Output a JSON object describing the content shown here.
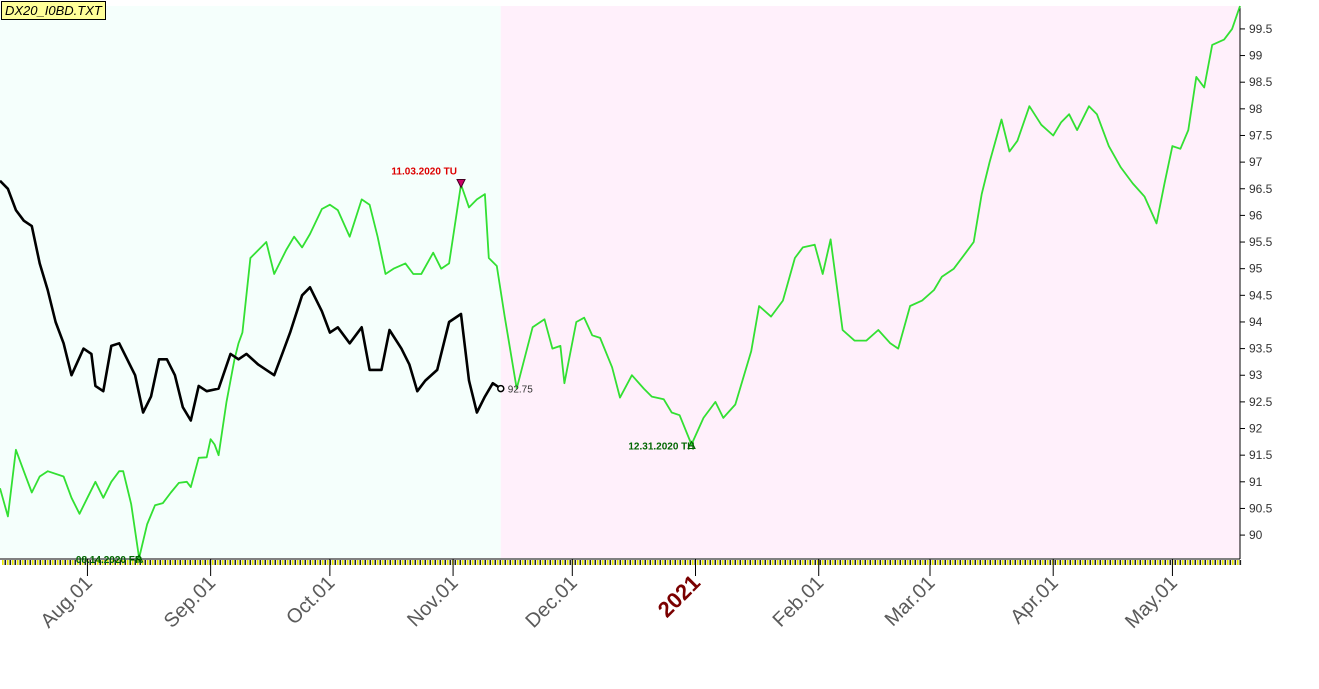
{
  "title": "DX20_I0BD.TXT",
  "colors": {
    "region_past": "#f5fffc",
    "region_future": "#fff0fb",
    "forecast_line": "#33e033",
    "price_line": "#000000",
    "annotation_red": "#dd0000",
    "annotation_green": "#006600",
    "year_label": "#7a0000"
  },
  "chart_data": {
    "type": "line",
    "x_range": [
      "2020-07-10",
      "2021-05-18"
    ],
    "y_range": [
      89.57,
      99.93
    ],
    "y_ticks": [
      "90",
      "90.5",
      "91",
      "91.5",
      "92",
      "92.5",
      "93",
      "93.5",
      "94",
      "94.5",
      "95",
      "95.5",
      "96",
      "96.5",
      "97",
      "97.5",
      "98",
      "98.5",
      "99",
      "99.5"
    ],
    "x_tick_labels": [
      {
        "label": "Aug.01",
        "date": "2020-08-01"
      },
      {
        "label": "Sep.01",
        "date": "2020-09-01"
      },
      {
        "label": "Oct.01",
        "date": "2020-10-01"
      },
      {
        "label": "Nov.01",
        "date": "2020-11-01"
      },
      {
        "label": "Dec.01",
        "date": "2020-12-01"
      },
      {
        "label": "2021",
        "date": "2021-01-01",
        "year": true
      },
      {
        "label": "Feb.01",
        "date": "2021-02-01"
      },
      {
        "label": "Mar.01",
        "date": "2021-03-01"
      },
      {
        "label": "Apr.01",
        "date": "2021-04-01"
      },
      {
        "label": "May.01",
        "date": "2021-05-01"
      }
    ],
    "region_split_date": "2020-11-13",
    "series": [
      {
        "kind": "forecast",
        "points": [
          [
            "2020-07-10",
            90.88
          ],
          [
            "2020-07-12",
            90.35
          ],
          [
            "2020-07-14",
            91.6
          ],
          [
            "2020-07-16",
            91.2
          ],
          [
            "2020-07-18",
            90.8
          ],
          [
            "2020-07-20",
            91.1
          ],
          [
            "2020-07-22",
            91.2
          ],
          [
            "2020-07-26",
            91.1
          ],
          [
            "2020-07-28",
            90.7
          ],
          [
            "2020-07-30",
            90.4
          ],
          [
            "2020-08-01",
            90.7
          ],
          [
            "2020-08-03",
            91
          ],
          [
            "2020-08-05",
            90.7
          ],
          [
            "2020-08-07",
            91
          ],
          [
            "2020-08-09",
            91.2
          ],
          [
            "2020-08-10",
            91.2
          ],
          [
            "2020-08-12",
            90.58
          ],
          [
            "2020-08-14",
            89.57
          ],
          [
            "2020-08-16",
            90.2
          ],
          [
            "2020-08-18",
            90.56
          ],
          [
            "2020-08-20",
            90.6
          ],
          [
            "2020-08-22",
            90.8
          ],
          [
            "2020-08-24",
            90.98
          ],
          [
            "2020-08-26",
            91
          ],
          [
            "2020-08-27",
            90.9
          ],
          [
            "2020-08-29",
            91.45
          ],
          [
            "2020-08-31",
            91.46
          ],
          [
            "2020-09-01",
            91.8
          ],
          [
            "2020-09-02",
            91.7
          ],
          [
            "2020-09-03",
            91.5
          ],
          [
            "2020-09-05",
            92.5
          ],
          [
            "2020-09-07",
            93.3
          ],
          [
            "2020-09-08",
            93.6
          ],
          [
            "2020-09-09",
            93.8
          ],
          [
            "2020-09-11",
            95.2
          ],
          [
            "2020-09-15",
            95.5
          ],
          [
            "2020-09-17",
            94.9
          ],
          [
            "2020-09-20",
            95.35
          ],
          [
            "2020-09-22",
            95.6
          ],
          [
            "2020-09-24",
            95.4
          ],
          [
            "2020-09-26",
            95.65
          ],
          [
            "2020-09-29",
            96.12
          ],
          [
            "2020-10-01",
            96.2
          ],
          [
            "2020-10-03",
            96.1
          ],
          [
            "2020-10-06",
            95.6
          ],
          [
            "2020-10-09",
            96.3
          ],
          [
            "2020-10-11",
            96.2
          ],
          [
            "2020-10-13",
            95.6
          ],
          [
            "2020-10-15",
            94.9
          ],
          [
            "2020-10-17",
            95
          ],
          [
            "2020-10-20",
            95.1
          ],
          [
            "2020-10-22",
            94.9
          ],
          [
            "2020-10-24",
            94.9
          ],
          [
            "2020-10-27",
            95.3
          ],
          [
            "2020-10-29",
            95
          ],
          [
            "2020-10-31",
            95.1
          ],
          [
            "2020-11-03",
            96.58
          ],
          [
            "2020-11-05",
            96.15
          ],
          [
            "2020-11-07",
            96.3
          ],
          [
            "2020-11-09",
            96.4
          ],
          [
            "2020-11-10",
            95.2
          ],
          [
            "2020-11-12",
            95.05
          ],
          [
            "2020-11-14",
            94.1
          ],
          [
            "2020-11-17",
            92.75
          ],
          [
            "2020-11-21",
            93.9
          ],
          [
            "2020-11-24",
            94.05
          ],
          [
            "2020-11-26",
            93.5
          ],
          [
            "2020-11-28",
            93.55
          ],
          [
            "2020-11-29",
            92.85
          ],
          [
            "2020-12-02",
            94
          ],
          [
            "2020-12-04",
            94.08
          ],
          [
            "2020-12-06",
            93.75
          ],
          [
            "2020-12-08",
            93.7
          ],
          [
            "2020-12-11",
            93.15
          ],
          [
            "2020-12-13",
            92.58
          ],
          [
            "2020-12-16",
            93
          ],
          [
            "2020-12-19",
            92.75
          ],
          [
            "2020-12-21",
            92.6
          ],
          [
            "2020-12-24",
            92.55
          ],
          [
            "2020-12-26",
            92.3
          ],
          [
            "2020-12-28",
            92.25
          ],
          [
            "2020-12-31",
            91.7
          ],
          [
            "2021-01-03",
            92.2
          ],
          [
            "2021-01-06",
            92.5
          ],
          [
            "2021-01-08",
            92.2
          ],
          [
            "2021-01-11",
            92.45
          ],
          [
            "2021-01-15",
            93.45
          ],
          [
            "2021-01-17",
            94.3
          ],
          [
            "2021-01-20",
            94.1
          ],
          [
            "2021-01-23",
            94.4
          ],
          [
            "2021-01-26",
            95.2
          ],
          [
            "2021-01-28",
            95.4
          ],
          [
            "2021-01-31",
            95.45
          ],
          [
            "2021-02-02",
            94.9
          ],
          [
            "2021-02-04",
            95.55
          ],
          [
            "2021-02-07",
            93.85
          ],
          [
            "2021-02-10",
            93.65
          ],
          [
            "2021-02-13",
            93.65
          ],
          [
            "2021-02-16",
            93.85
          ],
          [
            "2021-02-19",
            93.6
          ],
          [
            "2021-02-21",
            93.5
          ],
          [
            "2021-02-24",
            94.3
          ],
          [
            "2021-02-27",
            94.4
          ],
          [
            "2021-03-02",
            94.6
          ],
          [
            "2021-03-04",
            94.85
          ],
          [
            "2021-03-07",
            95
          ],
          [
            "2021-03-10",
            95.3
          ],
          [
            "2021-03-12",
            95.5
          ],
          [
            "2021-03-14",
            96.4
          ],
          [
            "2021-03-16",
            97
          ],
          [
            "2021-03-19",
            97.8
          ],
          [
            "2021-03-21",
            97.2
          ],
          [
            "2021-03-23",
            97.4
          ],
          [
            "2021-03-26",
            98.05
          ],
          [
            "2021-03-29",
            97.7
          ],
          [
            "2021-04-01",
            97.5
          ],
          [
            "2021-04-03",
            97.75
          ],
          [
            "2021-04-05",
            97.9
          ],
          [
            "2021-04-07",
            97.6
          ],
          [
            "2021-04-10",
            98.05
          ],
          [
            "2021-04-12",
            97.9
          ],
          [
            "2021-04-15",
            97.3
          ],
          [
            "2021-04-18",
            96.9
          ],
          [
            "2021-04-21",
            96.6
          ],
          [
            "2021-04-24",
            96.35
          ],
          [
            "2021-04-27",
            95.85
          ],
          [
            "2021-04-29",
            96.6
          ],
          [
            "2021-05-01",
            97.3
          ],
          [
            "2021-05-03",
            97.25
          ],
          [
            "2021-05-05",
            97.6
          ],
          [
            "2021-05-07",
            98.6
          ],
          [
            "2021-05-09",
            98.4
          ],
          [
            "2021-05-11",
            99.2
          ],
          [
            "2021-05-14",
            99.3
          ],
          [
            "2021-05-16",
            99.5
          ],
          [
            "2021-05-18",
            99.93
          ]
        ]
      },
      {
        "kind": "price",
        "points": [
          [
            "2020-07-10",
            96.65
          ],
          [
            "2020-07-12",
            96.5
          ],
          [
            "2020-07-14",
            96.1
          ],
          [
            "2020-07-16",
            95.9
          ],
          [
            "2020-07-18",
            95.8
          ],
          [
            "2020-07-20",
            95.1
          ],
          [
            "2020-07-22",
            94.6
          ],
          [
            "2020-07-24",
            94
          ],
          [
            "2020-07-26",
            93.6
          ],
          [
            "2020-07-28",
            93
          ],
          [
            "2020-07-31",
            93.5
          ],
          [
            "2020-08-02",
            93.4
          ],
          [
            "2020-08-03",
            92.8
          ],
          [
            "2020-08-05",
            92.7
          ],
          [
            "2020-08-07",
            93.55
          ],
          [
            "2020-08-09",
            93.6
          ],
          [
            "2020-08-11",
            93.3
          ],
          [
            "2020-08-13",
            93
          ],
          [
            "2020-08-15",
            92.3
          ],
          [
            "2020-08-17",
            92.6
          ],
          [
            "2020-08-19",
            93.3
          ],
          [
            "2020-08-21",
            93.3
          ],
          [
            "2020-08-23",
            93
          ],
          [
            "2020-08-25",
            92.4
          ],
          [
            "2020-08-27",
            92.15
          ],
          [
            "2020-08-29",
            92.8
          ],
          [
            "2020-08-31",
            92.7
          ],
          [
            "2020-09-03",
            92.75
          ],
          [
            "2020-09-06",
            93.4
          ],
          [
            "2020-09-08",
            93.3
          ],
          [
            "2020-09-10",
            93.4
          ],
          [
            "2020-09-13",
            93.2
          ],
          [
            "2020-09-15",
            93.1
          ],
          [
            "2020-09-17",
            93
          ],
          [
            "2020-09-19",
            93.4
          ],
          [
            "2020-09-21",
            93.8
          ],
          [
            "2020-09-24",
            94.5
          ],
          [
            "2020-09-26",
            94.65
          ],
          [
            "2020-09-29",
            94.2
          ],
          [
            "2020-10-01",
            93.8
          ],
          [
            "2020-10-03",
            93.9
          ],
          [
            "2020-10-06",
            93.6
          ],
          [
            "2020-10-09",
            93.9
          ],
          [
            "2020-10-11",
            93.1
          ],
          [
            "2020-10-14",
            93.1
          ],
          [
            "2020-10-16",
            93.85
          ],
          [
            "2020-10-19",
            93.5
          ],
          [
            "2020-10-21",
            93.2
          ],
          [
            "2020-10-23",
            92.7
          ],
          [
            "2020-10-25",
            92.9
          ],
          [
            "2020-10-28",
            93.1
          ],
          [
            "2020-10-31",
            94
          ],
          [
            "2020-11-03",
            94.15
          ],
          [
            "2020-11-05",
            92.9
          ],
          [
            "2020-11-07",
            92.3
          ],
          [
            "2020-11-09",
            92.6
          ],
          [
            "2020-11-11",
            92.85
          ],
          [
            "2020-11-13",
            92.75
          ]
        ]
      }
    ],
    "annotations": [
      {
        "text": "11.03.2020 TU",
        "date": "2020-11-03",
        "value": 96.58,
        "kind": "peak",
        "color": "#dd0000"
      },
      {
        "text": "08.14.2020 FR",
        "date": "2020-08-14",
        "value": 89.57,
        "kind": "trough",
        "color": "#006600"
      },
      {
        "text": "12.31.2020 TH",
        "date": "2020-12-31",
        "value": 91.7,
        "kind": "trough",
        "color": "#006600"
      }
    ],
    "last_value": {
      "text": "92.75",
      "date": "2020-11-13",
      "value": 92.75
    }
  }
}
